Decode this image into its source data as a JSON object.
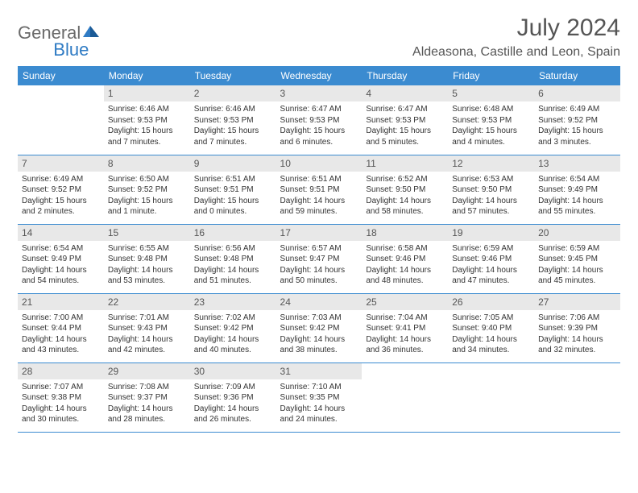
{
  "logo": {
    "word1": "General",
    "word2": "Blue"
  },
  "title": "July 2024",
  "location": "Aldeasona, Castille and Leon, Spain",
  "colors": {
    "header_bg": "#3b8bd0",
    "header_text": "#ffffff",
    "daynum_bg": "#e8e8e8",
    "border": "#3b8bd0",
    "logo_blue": "#2f7bc4",
    "logo_gray": "#6a6a6a"
  },
  "daysOfWeek": [
    "Sunday",
    "Monday",
    "Tuesday",
    "Wednesday",
    "Thursday",
    "Friday",
    "Saturday"
  ],
  "weeks": [
    [
      {
        "empty": true
      },
      {
        "num": "1",
        "sunrise": "6:46 AM",
        "sunset": "9:53 PM",
        "daylight": "15 hours and 7 minutes."
      },
      {
        "num": "2",
        "sunrise": "6:46 AM",
        "sunset": "9:53 PM",
        "daylight": "15 hours and 7 minutes."
      },
      {
        "num": "3",
        "sunrise": "6:47 AM",
        "sunset": "9:53 PM",
        "daylight": "15 hours and 6 minutes."
      },
      {
        "num": "4",
        "sunrise": "6:47 AM",
        "sunset": "9:53 PM",
        "daylight": "15 hours and 5 minutes."
      },
      {
        "num": "5",
        "sunrise": "6:48 AM",
        "sunset": "9:53 PM",
        "daylight": "15 hours and 4 minutes."
      },
      {
        "num": "6",
        "sunrise": "6:49 AM",
        "sunset": "9:52 PM",
        "daylight": "15 hours and 3 minutes."
      }
    ],
    [
      {
        "num": "7",
        "sunrise": "6:49 AM",
        "sunset": "9:52 PM",
        "daylight": "15 hours and 2 minutes."
      },
      {
        "num": "8",
        "sunrise": "6:50 AM",
        "sunset": "9:52 PM",
        "daylight": "15 hours and 1 minute."
      },
      {
        "num": "9",
        "sunrise": "6:51 AM",
        "sunset": "9:51 PM",
        "daylight": "15 hours and 0 minutes."
      },
      {
        "num": "10",
        "sunrise": "6:51 AM",
        "sunset": "9:51 PM",
        "daylight": "14 hours and 59 minutes."
      },
      {
        "num": "11",
        "sunrise": "6:52 AM",
        "sunset": "9:50 PM",
        "daylight": "14 hours and 58 minutes."
      },
      {
        "num": "12",
        "sunrise": "6:53 AM",
        "sunset": "9:50 PM",
        "daylight": "14 hours and 57 minutes."
      },
      {
        "num": "13",
        "sunrise": "6:54 AM",
        "sunset": "9:49 PM",
        "daylight": "14 hours and 55 minutes."
      }
    ],
    [
      {
        "num": "14",
        "sunrise": "6:54 AM",
        "sunset": "9:49 PM",
        "daylight": "14 hours and 54 minutes."
      },
      {
        "num": "15",
        "sunrise": "6:55 AM",
        "sunset": "9:48 PM",
        "daylight": "14 hours and 53 minutes."
      },
      {
        "num": "16",
        "sunrise": "6:56 AM",
        "sunset": "9:48 PM",
        "daylight": "14 hours and 51 minutes."
      },
      {
        "num": "17",
        "sunrise": "6:57 AM",
        "sunset": "9:47 PM",
        "daylight": "14 hours and 50 minutes."
      },
      {
        "num": "18",
        "sunrise": "6:58 AM",
        "sunset": "9:46 PM",
        "daylight": "14 hours and 48 minutes."
      },
      {
        "num": "19",
        "sunrise": "6:59 AM",
        "sunset": "9:46 PM",
        "daylight": "14 hours and 47 minutes."
      },
      {
        "num": "20",
        "sunrise": "6:59 AM",
        "sunset": "9:45 PM",
        "daylight": "14 hours and 45 minutes."
      }
    ],
    [
      {
        "num": "21",
        "sunrise": "7:00 AM",
        "sunset": "9:44 PM",
        "daylight": "14 hours and 43 minutes."
      },
      {
        "num": "22",
        "sunrise": "7:01 AM",
        "sunset": "9:43 PM",
        "daylight": "14 hours and 42 minutes."
      },
      {
        "num": "23",
        "sunrise": "7:02 AM",
        "sunset": "9:42 PM",
        "daylight": "14 hours and 40 minutes."
      },
      {
        "num": "24",
        "sunrise": "7:03 AM",
        "sunset": "9:42 PM",
        "daylight": "14 hours and 38 minutes."
      },
      {
        "num": "25",
        "sunrise": "7:04 AM",
        "sunset": "9:41 PM",
        "daylight": "14 hours and 36 minutes."
      },
      {
        "num": "26",
        "sunrise": "7:05 AM",
        "sunset": "9:40 PM",
        "daylight": "14 hours and 34 minutes."
      },
      {
        "num": "27",
        "sunrise": "7:06 AM",
        "sunset": "9:39 PM",
        "daylight": "14 hours and 32 minutes."
      }
    ],
    [
      {
        "num": "28",
        "sunrise": "7:07 AM",
        "sunset": "9:38 PM",
        "daylight": "14 hours and 30 minutes."
      },
      {
        "num": "29",
        "sunrise": "7:08 AM",
        "sunset": "9:37 PM",
        "daylight": "14 hours and 28 minutes."
      },
      {
        "num": "30",
        "sunrise": "7:09 AM",
        "sunset": "9:36 PM",
        "daylight": "14 hours and 26 minutes."
      },
      {
        "num": "31",
        "sunrise": "7:10 AM",
        "sunset": "9:35 PM",
        "daylight": "14 hours and 24 minutes."
      },
      {
        "empty": true
      },
      {
        "empty": true
      },
      {
        "empty": true
      }
    ]
  ],
  "labels": {
    "sunrise": "Sunrise:",
    "sunset": "Sunset:",
    "daylight": "Daylight:"
  }
}
